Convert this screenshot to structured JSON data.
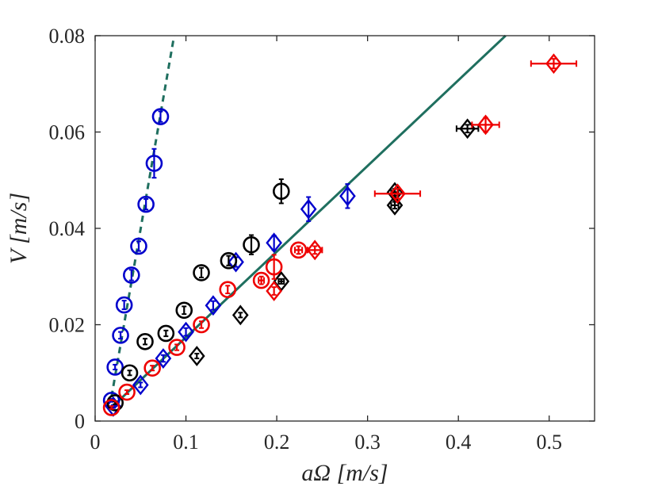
{
  "chart_data": {
    "type": "scatter",
    "title": "",
    "xlabel": "aΩ [m/s]",
    "ylabel": "V [m/s]",
    "xlim": [
      0,
      0.55
    ],
    "ylim": [
      0,
      0.08
    ],
    "grid": false,
    "x_ticks": [
      0,
      0.1,
      0.2,
      0.3,
      0.4,
      0.5
    ],
    "x_tick_labels": [
      "0",
      "0.1",
      "0.2",
      "0.3",
      "0.4",
      "0.5"
    ],
    "y_ticks": [
      0,
      0.02,
      0.04,
      0.06,
      0.08
    ],
    "y_tick_labels": [
      "0",
      "0.02",
      "0.04",
      "0.06",
      "0.08"
    ],
    "fit_lines": [
      {
        "name": "steep-fit",
        "style": "dashed",
        "color": "#1f6f5f",
        "x": [
          0.018,
          0.087
        ],
        "y": [
          0.005,
          0.08
        ]
      },
      {
        "name": "shallow-fit",
        "style": "solid",
        "color": "#1f6f5f",
        "x": [
          0.018,
          0.452
        ],
        "y": [
          0.0028,
          0.08
        ]
      }
    ],
    "series": [
      {
        "name": "blue-circle",
        "marker": "circle",
        "color": "#0000cc",
        "points": [
          {
            "x": 0.018,
            "y": 0.0043,
            "ye": 0.0003,
            "xe": 0.0
          },
          {
            "x": 0.022,
            "y": 0.0112,
            "ye": 0.0005,
            "xe": 0.0
          },
          {
            "x": 0.028,
            "y": 0.0178,
            "ye": 0.0007,
            "xe": 0.0
          },
          {
            "x": 0.032,
            "y": 0.0241,
            "ye": 0.0009,
            "xe": 0.0
          },
          {
            "x": 0.04,
            "y": 0.0303,
            "ye": 0.0011,
            "xe": 0.0
          },
          {
            "x": 0.048,
            "y": 0.0363,
            "ye": 0.001,
            "xe": 0.0
          },
          {
            "x": 0.056,
            "y": 0.045,
            "ye": 0.0011,
            "xe": 0.0
          },
          {
            "x": 0.065,
            "y": 0.0535,
            "ye": 0.003,
            "xe": 0.0
          },
          {
            "x": 0.072,
            "y": 0.0632,
            "ye": 0.0011,
            "xe": 0.0
          }
        ]
      },
      {
        "name": "blue-diamond",
        "marker": "diamond",
        "color": "#0000cc",
        "points": [
          {
            "x": 0.02,
            "y": 0.003,
            "ye": 0.0003,
            "xe": 0.0
          },
          {
            "x": 0.05,
            "y": 0.0075,
            "ye": 0.0005,
            "xe": 0.0
          },
          {
            "x": 0.075,
            "y": 0.013,
            "ye": 0.0007,
            "xe": 0.0
          },
          {
            "x": 0.1,
            "y": 0.0185,
            "ye": 0.0008,
            "xe": 0.0
          },
          {
            "x": 0.13,
            "y": 0.024,
            "ye": 0.0009,
            "xe": 0.0
          },
          {
            "x": 0.155,
            "y": 0.033,
            "ye": 0.001,
            "xe": 0.0
          },
          {
            "x": 0.197,
            "y": 0.037,
            "ye": 0.0015,
            "xe": 0.0
          },
          {
            "x": 0.235,
            "y": 0.044,
            "ye": 0.0025,
            "xe": 0.0
          },
          {
            "x": 0.278,
            "y": 0.0467,
            "ye": 0.0025,
            "xe": 0.0
          }
        ]
      },
      {
        "name": "black-circle",
        "marker": "circle",
        "color": "#000000",
        "points": [
          {
            "x": 0.022,
            "y": 0.0038,
            "ye": 0.0003,
            "xe": 0.0
          },
          {
            "x": 0.038,
            "y": 0.01,
            "ye": 0.0005,
            "xe": 0.0
          },
          {
            "x": 0.055,
            "y": 0.0165,
            "ye": 0.0006,
            "xe": 0.0
          },
          {
            "x": 0.078,
            "y": 0.0182,
            "ye": 0.0006,
            "xe": 0.0
          },
          {
            "x": 0.098,
            "y": 0.023,
            "ye": 0.0008,
            "xe": 0.0
          },
          {
            "x": 0.117,
            "y": 0.0308,
            "ye": 0.001,
            "xe": 0.0
          },
          {
            "x": 0.147,
            "y": 0.0333,
            "ye": 0.001,
            "xe": 0.0
          },
          {
            "x": 0.172,
            "y": 0.0366,
            "ye": 0.002,
            "xe": 0.0
          },
          {
            "x": 0.205,
            "y": 0.0477,
            "ye": 0.0025,
            "xe": 0.0
          }
        ]
      },
      {
        "name": "black-diamond",
        "marker": "diamond",
        "color": "#000000",
        "points": [
          {
            "x": 0.112,
            "y": 0.0135,
            "ye": 0.0005,
            "xe": 0.0
          },
          {
            "x": 0.16,
            "y": 0.022,
            "ye": 0.0005,
            "xe": 0.0
          },
          {
            "x": 0.205,
            "y": 0.029,
            "ye": 0.0005,
            "xe": 0.003
          },
          {
            "x": 0.33,
            "y": 0.0448,
            "ye": 0.0007,
            "xe": 0.004
          },
          {
            "x": 0.33,
            "y": 0.0475,
            "ye": 0.0007,
            "xe": 0.004
          },
          {
            "x": 0.41,
            "y": 0.0607,
            "ye": 0.0008,
            "xe": 0.012
          }
        ]
      },
      {
        "name": "red-circle",
        "marker": "circle",
        "color": "#ee0000",
        "points": [
          {
            "x": 0.018,
            "y": 0.0028,
            "ye": 0.0003,
            "xe": 0.0
          },
          {
            "x": 0.035,
            "y": 0.006,
            "ye": 0.0004,
            "xe": 0.0
          },
          {
            "x": 0.063,
            "y": 0.011,
            "ye": 0.0005,
            "xe": 0.0
          },
          {
            "x": 0.09,
            "y": 0.0153,
            "ye": 0.0006,
            "xe": 0.0
          },
          {
            "x": 0.117,
            "y": 0.02,
            "ye": 0.0007,
            "xe": 0.0
          },
          {
            "x": 0.146,
            "y": 0.0273,
            "ye": 0.0008,
            "xe": 0.0
          },
          {
            "x": 0.183,
            "y": 0.0292,
            "ye": 0.0008,
            "xe": 0.003
          },
          {
            "x": 0.197,
            "y": 0.032,
            "ye": 0.0025,
            "xe": 0.0
          },
          {
            "x": 0.224,
            "y": 0.0355,
            "ye": 0.0008,
            "xe": 0.004
          }
        ]
      },
      {
        "name": "red-diamond",
        "marker": "diamond",
        "color": "#ee0000",
        "points": [
          {
            "x": 0.197,
            "y": 0.027,
            "ye": 0.0008,
            "xe": 0.0
          },
          {
            "x": 0.242,
            "y": 0.0355,
            "ye": 0.0008,
            "xe": 0.008
          },
          {
            "x": 0.333,
            "y": 0.0472,
            "ye": 0.001,
            "xe": 0.025
          },
          {
            "x": 0.43,
            "y": 0.0615,
            "ye": 0.0015,
            "xe": 0.015
          },
          {
            "x": 0.505,
            "y": 0.0742,
            "ye": 0.001,
            "xe": 0.025
          }
        ]
      }
    ]
  }
}
